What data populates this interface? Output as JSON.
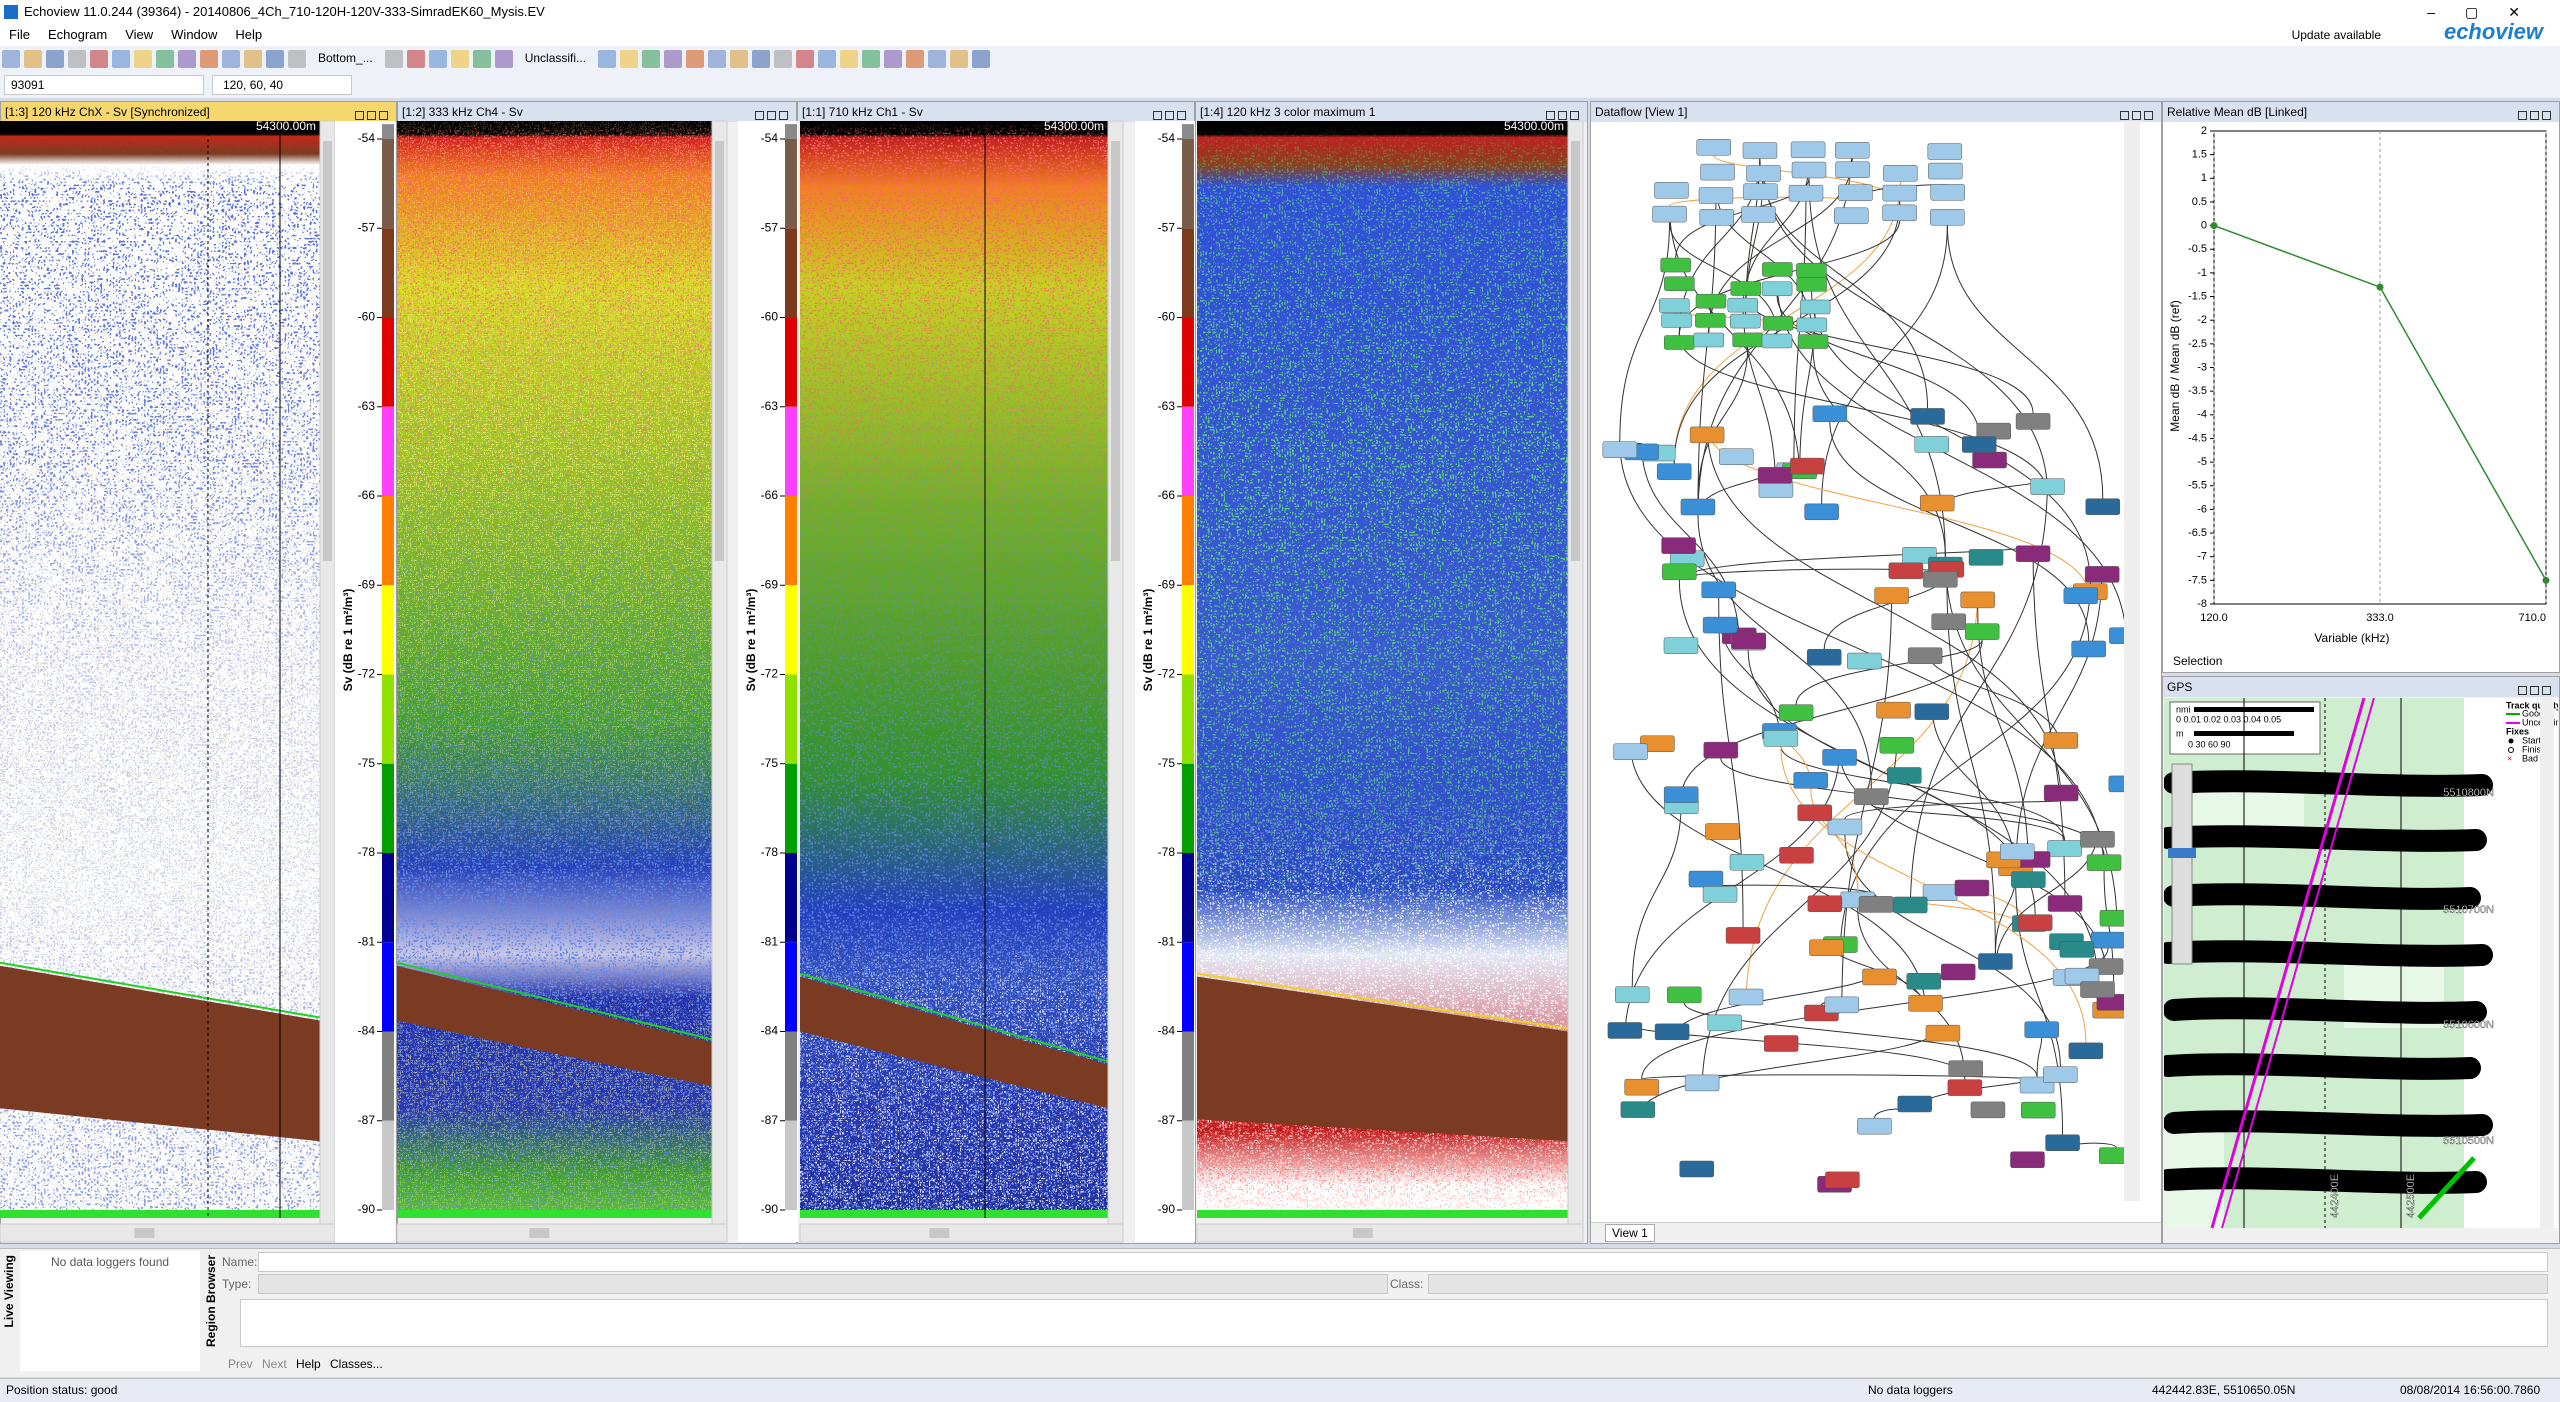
{
  "window": {
    "title": "Echoview 11.0.244 (39364) - 20140806_4Ch_710-120H-120V-333-SimradEK60_Mysis.EV"
  },
  "menu": [
    "File",
    "Echogram",
    "View",
    "Window",
    "Help"
  ],
  "update_notice": "Update available",
  "logo": "echoview",
  "toolbar": {
    "bottom_picker": "Bottom_...",
    "region_class": "Unclassifi...",
    "ping": "93091",
    "color": "120, 60, 40"
  },
  "echograms": [
    {
      "title": "[1:3] 120 kHz ChX - Sv [Synchronized]",
      "range_label": "54300.00m"
    },
    {
      "title": "[1:2] 333 kHz Ch4 - Sv"
    },
    {
      "title": "[1:1] 710 kHz Ch1 - Sv",
      "range_label": "54300.00m"
    },
    {
      "title": "[1:4] 120 kHz 3 color maximum 1",
      "range_label": "54300.00m"
    }
  ],
  "color_scale": {
    "label": "Sv (dB re 1 m²/m³)",
    "lim": [
      -53.5,
      -90
    ],
    "ticks": [
      -54,
      -57,
      -60,
      -63,
      -66,
      -69,
      -72,
      -75,
      -78,
      -81,
      -84,
      -87,
      -90
    ]
  },
  "dataflow": {
    "title": "Dataflow [View 1]",
    "tab": "View 1"
  },
  "chart_data": {
    "type": "line",
    "title": "Relative Mean dB [Linked]",
    "x_label": "Variable (kHz)",
    "y_label": "Mean dB / Mean dB (ref)",
    "categories": [
      "120.0",
      "333.0",
      "710.0"
    ],
    "series": [
      {
        "name": "Relative Mean dB",
        "color": "#2e8b2e",
        "values": [
          0,
          -1.3,
          -7.5
        ]
      }
    ],
    "ylim": [
      -8,
      2
    ],
    "yticks": [
      2,
      1.5,
      1,
      0.5,
      0,
      -0.5,
      -1,
      -1.5,
      -2,
      -2.5,
      -3,
      -3.5,
      -4,
      -4.5,
      -5,
      -5.5,
      -6,
      -6.5,
      -7,
      -7.5,
      -8
    ],
    "grid": true
  },
  "relative_panel": {
    "status": "Selection"
  },
  "gps": {
    "title": "GPS",
    "legend": {
      "title": "Track quality",
      "items": [
        "Good",
        "Uncertain"
      ],
      "fixes_title": "Fixes",
      "fixes": [
        "Start",
        "Finish",
        "Bad"
      ]
    },
    "scale": {
      "nmi_unit": "nmi",
      "nmi_ticks": "0  0.01 0.02 0.03 0.04 0.05",
      "m_unit": "m",
      "m_ticks": "0      30      60      90"
    },
    "northings": [
      "5510800N",
      "5510700N",
      "5510600N",
      "5510500N"
    ],
    "eastings": [
      "442400E",
      "442500E"
    ]
  },
  "live_viewing": {
    "title": "Live Viewing",
    "message": "No data loggers found"
  },
  "region_browser": {
    "title": "Region Browser",
    "fields": [
      "Name:",
      "Type:",
      "Class:"
    ],
    "buttons": [
      "Prev",
      "Next",
      "Help",
      "Classes..."
    ]
  },
  "status": {
    "position": "Position status: good",
    "loggers": "No data loggers",
    "coordinates": "442442.83E, 5510650.05N",
    "time": "08/08/2014 16:56:00.7860"
  }
}
